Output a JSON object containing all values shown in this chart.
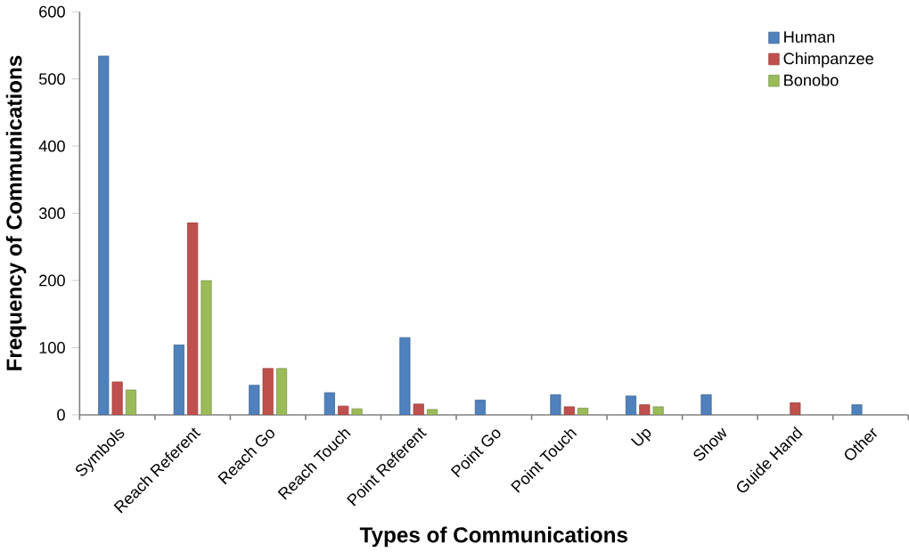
{
  "chart_data": {
    "type": "bar",
    "xlabel": "Types of Communications",
    "ylabel": "Frequency of Communications",
    "categories": [
      "Symbols",
      "Reach Referent",
      "Reach Go",
      "Reach Touch",
      "Point Referent",
      "Point Go",
      "Point Touch",
      "Up",
      "Show",
      "Guide Hand",
      "Other"
    ],
    "series": [
      {
        "name": "Human",
        "color": "#4f81bd",
        "values": [
          534,
          104,
          44,
          33,
          115,
          22,
          30,
          28,
          30,
          null,
          15
        ]
      },
      {
        "name": "Chimpanzee",
        "color": "#c0504d",
        "values": [
          49,
          286,
          69,
          13,
          16,
          null,
          12,
          15,
          null,
          18,
          null
        ]
      },
      {
        "name": "Bonobo",
        "color": "#9bbb59",
        "values": [
          37,
          200,
          69,
          9,
          8,
          null,
          10,
          12,
          null,
          null,
          null
        ]
      }
    ],
    "ylim": [
      0,
      600
    ],
    "yticks": [
      0,
      100,
      200,
      300,
      400,
      500,
      600
    ],
    "grid": false,
    "legend": "top right"
  }
}
